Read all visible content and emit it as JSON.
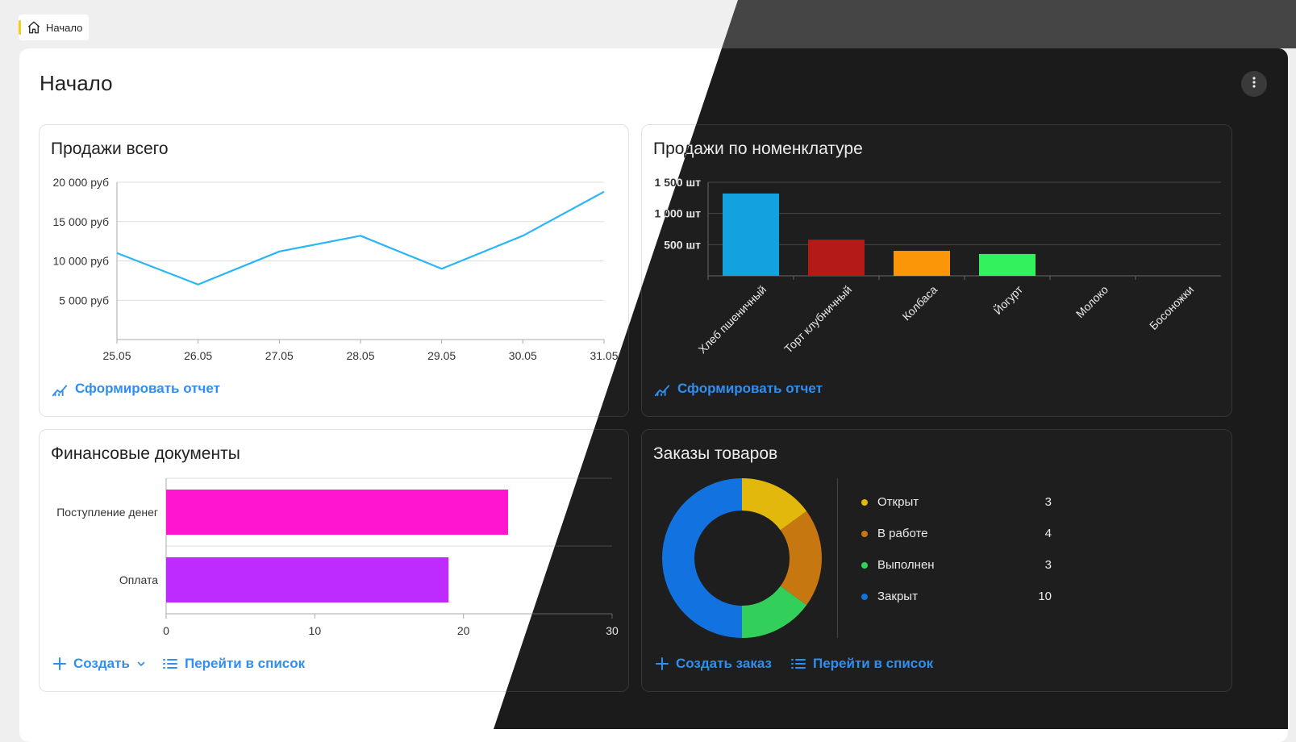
{
  "breadcrumb": {
    "label": "Начало"
  },
  "page": {
    "title": "Начало"
  },
  "cards": {
    "sales_total": {
      "title": "Продажи всего",
      "action_label": "Сформировать отчет"
    },
    "sales_items": {
      "title": "Продажи по номенклатуре",
      "action_label": "Сформировать отчет"
    },
    "finance_docs": {
      "title": "Финансовые документы",
      "create_label": "Создать",
      "list_label": "Перейти в список"
    },
    "orders": {
      "title": "Заказы товаров",
      "create_label": "Создать заказ",
      "list_label": "Перейти в список"
    }
  },
  "colors": {
    "accent": "#2f8ff0",
    "breadcrumb_marker": "#f5cc16",
    "line": "#29b6f6"
  },
  "icons": {
    "breadcrumb": "home-icon",
    "more": "more-vertical-icon",
    "report": "chart-report-icon",
    "create": "plus-icon",
    "dropdown": "chevron-down-icon",
    "list": "list-icon"
  },
  "chart_data": [
    {
      "id": "sales_total",
      "type": "line",
      "x": [
        "25.05",
        "26.05",
        "27.05",
        "28.05",
        "29.05",
        "30.05",
        "31.05"
      ],
      "series": [
        {
          "values": [
            11000,
            7000,
            11200,
            13200,
            9000,
            13200,
            18800
          ],
          "color": "#29b6f6"
        }
      ],
      "y_ticks": [
        "5 000 руб",
        "10 000 руб",
        "15 000 руб",
        "20 000 руб"
      ],
      "ylim": [
        0,
        20000
      ],
      "grid": true
    },
    {
      "id": "sales_items",
      "type": "bar",
      "categories": [
        "Хлеб пшеничный",
        "Торт клубничный",
        "Колбаса",
        "Йогурт",
        "Молоко",
        "Босоножки"
      ],
      "values": [
        1320,
        580,
        400,
        350,
        0,
        0
      ],
      "colors": [
        "#13a2e0",
        "#b21b18",
        "#fb9608",
        "#32f15d",
        "#999999",
        "#999999"
      ],
      "y_ticks": [
        "500 шт",
        "1 000 шт",
        "1 500 шт"
      ],
      "ylim": [
        0,
        1500
      ],
      "grid": true
    },
    {
      "id": "finance_docs",
      "type": "bar",
      "orientation": "horizontal",
      "categories": [
        "Поступление денег",
        "Оплата"
      ],
      "values": [
        23,
        19
      ],
      "colors": [
        "#ff14d0",
        "#bd2bff"
      ],
      "x_ticks": [
        "0",
        "10",
        "20",
        "30"
      ],
      "xlim": [
        0,
        30
      ],
      "grid": true
    },
    {
      "id": "orders",
      "type": "pie",
      "style": "donut",
      "labels": [
        "Открыт",
        "В работе",
        "Выполнен",
        "Закрыт"
      ],
      "values": [
        3,
        4,
        3,
        10
      ],
      "counts": [
        "3",
        "4",
        "3",
        "10"
      ],
      "colors": [
        "#e1b80b",
        "#c7770f",
        "#32d05a",
        "#1273e0"
      ],
      "legend_position": "right"
    }
  ]
}
